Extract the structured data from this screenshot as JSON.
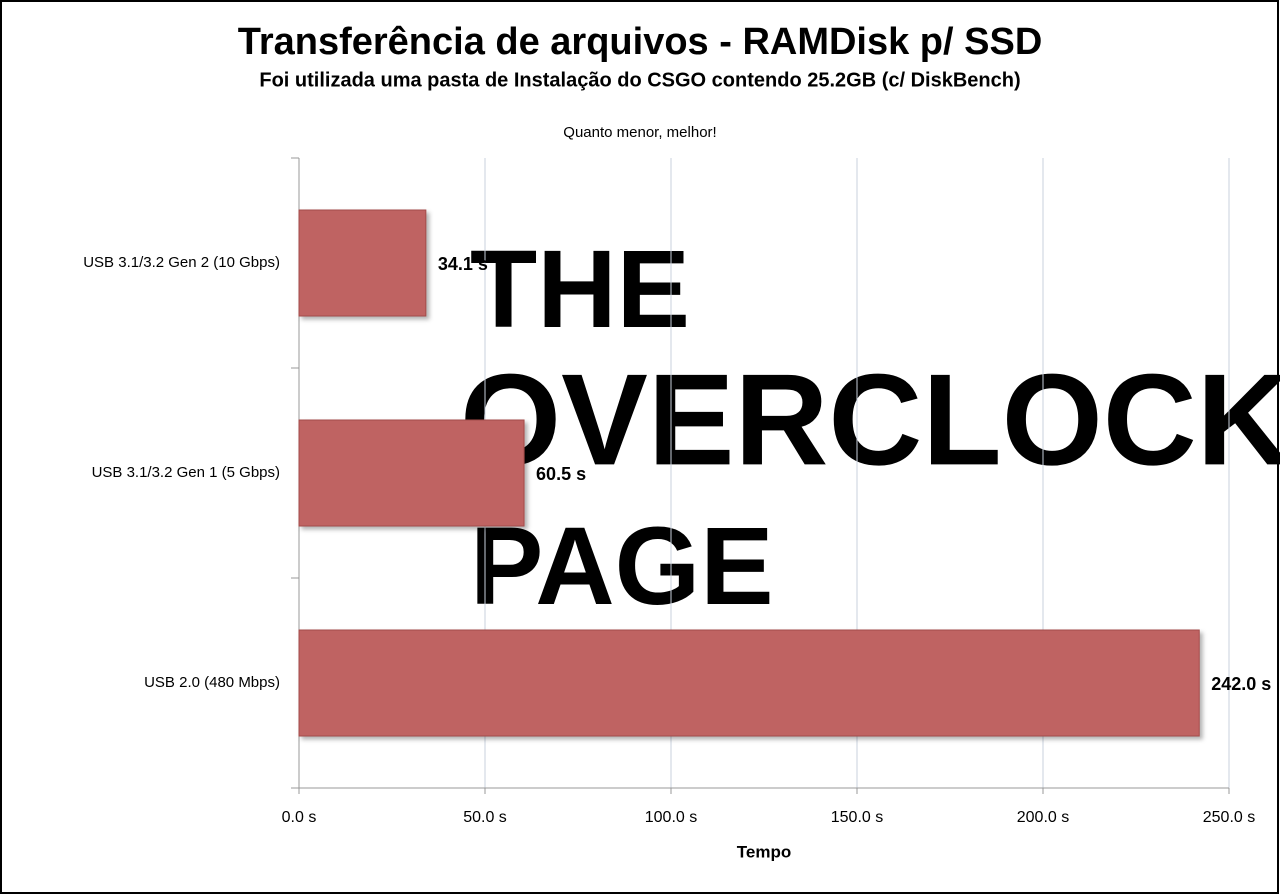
{
  "chart_data": {
    "type": "bar",
    "orientation": "horizontal",
    "title": "Transferência de arquivos - RAMDisk p/ SSD",
    "subtitle": "Foi utilizada uma pasta de Instalação do CSGO contendo 25.2GB (c/ DiskBench)",
    "annotation": "Quanto menor, melhor!",
    "xlabel": "Tempo",
    "watermark": [
      "THE",
      "OVERCLOCK",
      "PAGE"
    ],
    "categories": [
      "USB 3.1/3.2 Gen 2 (10 Gbps)",
      "USB 3.1/3.2 Gen 1 (5 Gbps)",
      "USB 2.0 (480 Mbps)"
    ],
    "values": [
      34.1,
      60.5,
      242.0
    ],
    "value_labels": [
      "34.1 s",
      "60.5 s",
      "242.0 s"
    ],
    "color": "#bf6462",
    "xlim": [
      0,
      250
    ],
    "xticks": [
      {
        "value": 0,
        "label": "0.0 s"
      },
      {
        "value": 50,
        "label": "50.0 s"
      },
      {
        "value": 100,
        "label": "100.0 s"
      },
      {
        "value": 150,
        "label": "150.0 s"
      },
      {
        "value": 200,
        "label": "200.0 s"
      },
      {
        "value": 250,
        "label": "250.0 s"
      }
    ],
    "grid": true
  }
}
